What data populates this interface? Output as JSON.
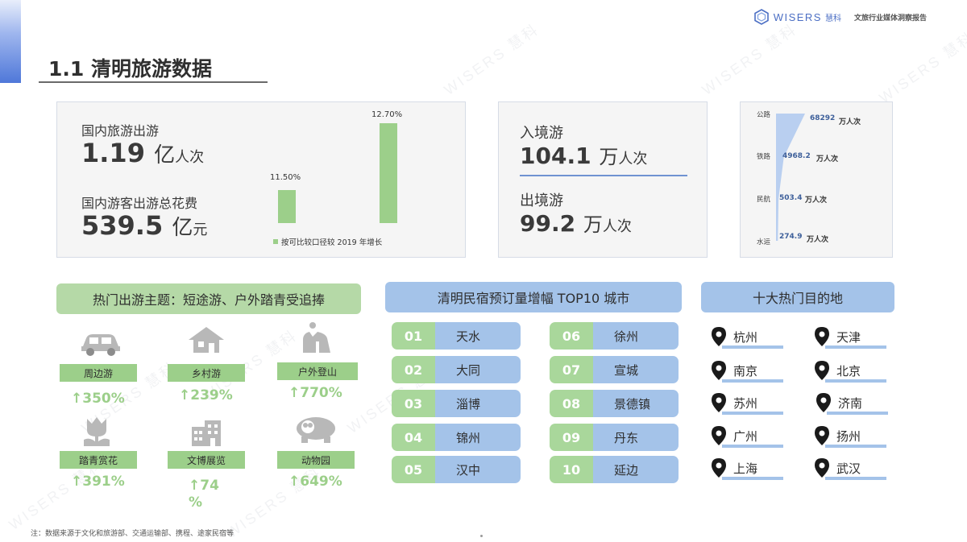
{
  "brand": {
    "name": "WISERS",
    "name_cn": "慧科",
    "report": "文旅行业媒体洞察报告",
    "watermark": "WISERS 慧科"
  },
  "title": "1.1  清明旅游数据",
  "domestic": {
    "trips_label": "国内旅游出游",
    "trips_value": "1.19",
    "trips_unit_big": "亿",
    "trips_unit_small": "人次",
    "spend_label": "国内游客出游总花费",
    "spend_value": "539.5",
    "spend_unit_big": "亿",
    "spend_unit_small": "元",
    "chart_data": {
      "type": "bar",
      "categories": [
        "国内旅游出游",
        "国内游客出游总花费"
      ],
      "values": [
        11.5,
        12.7
      ],
      "value_labels": [
        "11.50%",
        "12.70%"
      ],
      "legend": "按可比较口径较 2019 年增长"
    }
  },
  "border": {
    "inbound_label": "入境游",
    "inbound_value": "104.1",
    "inbound_unit_big": "万",
    "inbound_unit_small": "人次",
    "outbound_label": "出境游",
    "outbound_value": "99.2",
    "outbound_unit_big": "万",
    "outbound_unit_small": "人次"
  },
  "transport": {
    "chart_data": {
      "type": "bar",
      "categories": [
        "公路",
        "铁路",
        "民航",
        "水运"
      ],
      "values": [
        68292,
        4968.2,
        503.4,
        274.9
      ],
      "value_labels": [
        "68292",
        "4968.2",
        "503.4",
        "274.9"
      ],
      "unit": "万人次"
    }
  },
  "themes": {
    "header": "热门出游主题：短途游、户外踏青受追捧",
    "items": [
      {
        "icon": "car-icon",
        "label": "周边游",
        "pct": "↑350%"
      },
      {
        "icon": "house-icon",
        "label": "乡村游",
        "pct": "↑239%"
      },
      {
        "icon": "mountain-icon",
        "label": "户外登山",
        "pct": "↑770%"
      },
      {
        "icon": "flower-icon",
        "label": "踏青赏花",
        "pct": "↑391%"
      },
      {
        "icon": "museum-icon",
        "label": "文博展览",
        "pct_line1": "↑74",
        "pct_line2": "%"
      },
      {
        "icon": "panda-icon",
        "label": "动物园",
        "pct": "↑649%"
      }
    ]
  },
  "cities": {
    "header": "清明民宿预订量增幅 TOP10 城市",
    "items": [
      {
        "rank": "01",
        "name": "天水"
      },
      {
        "rank": "02",
        "name": "大同"
      },
      {
        "rank": "03",
        "name": "淄博"
      },
      {
        "rank": "04",
        "name": "锦州"
      },
      {
        "rank": "05",
        "name": "汉中"
      },
      {
        "rank": "06",
        "name": "徐州"
      },
      {
        "rank": "07",
        "name": "宣城"
      },
      {
        "rank": "08",
        "name": "景德镇"
      },
      {
        "rank": "09",
        "name": "丹东"
      },
      {
        "rank": "10",
        "name": "延边"
      }
    ]
  },
  "destinations": {
    "header": "十大热门目的地",
    "items": [
      "杭州",
      "天津",
      "南京",
      "北京",
      "苏州",
      "济南",
      "广州",
      "扬州",
      "上海",
      "武汉"
    ]
  },
  "footnote": "注：数据来源于文化和旅游部、交通运输部、携程、途家民宿等"
}
